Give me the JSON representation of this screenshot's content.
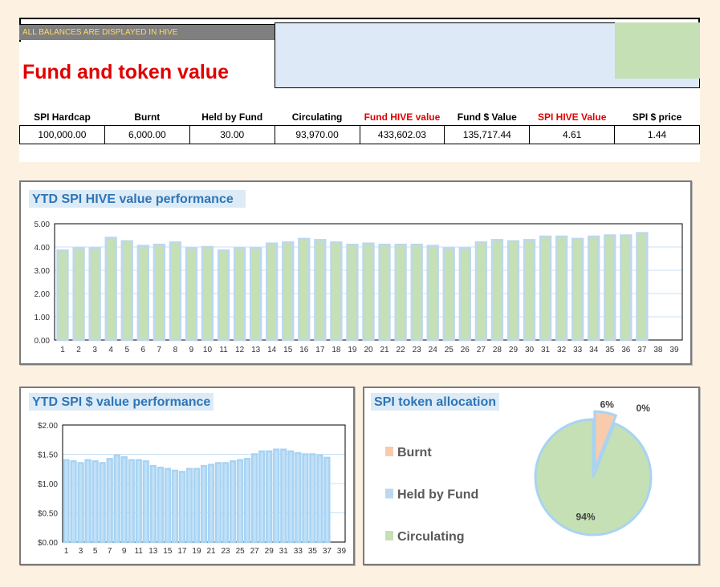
{
  "header": {
    "banner": "ALL BALANCES ARE DISPLAYED IN HIVE",
    "title": "Fund and token value"
  },
  "table": {
    "headers": [
      "SPI Hardcap",
      "Burnt",
      "Held by Fund",
      "Circulating",
      "Fund HIVE value",
      "Fund $ Value",
      "SPI HIVE Value",
      "SPI $ price"
    ],
    "rows": [
      [
        "100,000.00",
        "6,000.00",
        "30.00",
        "93,970.00",
        "433,602.03",
        "135,717.44",
        "4.61",
        "1.44"
      ]
    ]
  },
  "chart_data": [
    {
      "type": "bar",
      "title": "YTD SPI HIVE value performance",
      "categories": [
        "1",
        "2",
        "3",
        "4",
        "5",
        "6",
        "7",
        "8",
        "9",
        "10",
        "11",
        "12",
        "13",
        "14",
        "15",
        "16",
        "17",
        "18",
        "19",
        "20",
        "21",
        "22",
        "23",
        "24",
        "25",
        "26",
        "27",
        "28",
        "29",
        "30",
        "31",
        "32",
        "33",
        "34",
        "35",
        "36",
        "37",
        "38",
        "39"
      ],
      "values": [
        3.85,
        3.95,
        3.95,
        4.4,
        4.25,
        4.05,
        4.1,
        4.2,
        3.95,
        4.0,
        3.85,
        3.95,
        3.95,
        4.15,
        4.2,
        4.35,
        4.3,
        4.2,
        4.1,
        4.15,
        4.1,
        4.1,
        4.1,
        4.05,
        3.95,
        3.95,
        4.2,
        4.3,
        4.25,
        4.3,
        4.45,
        4.45,
        4.35,
        4.45,
        4.5,
        4.5,
        4.6,
        null,
        null
      ],
      "color": "#c5e0b4",
      "edge": "#bdd7ee",
      "ylim": [
        0,
        5
      ],
      "yticks": [
        {
          "value": 0,
          "label": "0.00"
        },
        {
          "value": 1,
          "label": "1.00"
        },
        {
          "value": 2,
          "label": "2.00"
        },
        {
          "value": 3,
          "label": "3.00"
        },
        {
          "value": 4,
          "label": "4.00"
        },
        {
          "value": 5,
          "label": "5.00"
        }
      ],
      "grid": true
    },
    {
      "type": "bar",
      "title": "YTD SPI $ value performance",
      "categories": [
        "1",
        null,
        "3",
        null,
        "5",
        null,
        "7",
        null,
        "9",
        null,
        "11",
        null,
        "13",
        null,
        "15",
        null,
        "17",
        null,
        "19",
        null,
        "21",
        null,
        "23",
        null,
        "25",
        null,
        "27",
        null,
        "29",
        null,
        "31",
        null,
        "33",
        null,
        "35",
        null,
        "37",
        null,
        "39"
      ],
      "values": [
        1.4,
        1.38,
        1.35,
        1.4,
        1.38,
        1.35,
        1.42,
        1.48,
        1.45,
        1.4,
        1.4,
        1.38,
        1.3,
        1.27,
        1.25,
        1.22,
        1.2,
        1.25,
        1.25,
        1.3,
        1.32,
        1.35,
        1.35,
        1.38,
        1.4,
        1.42,
        1.5,
        1.55,
        1.55,
        1.58,
        1.58,
        1.55,
        1.52,
        1.5,
        1.5,
        1.48,
        1.44,
        null,
        null
      ],
      "color": "#bfe1f8",
      "edge": "#a9d3f2",
      "ylim": [
        0,
        2
      ],
      "yticks": [
        {
          "value": 0,
          "label": "$0.00"
        },
        {
          "value": 0.5,
          "label": "$0.50"
        },
        {
          "value": 1,
          "label": "$1.00"
        },
        {
          "value": 1.5,
          "label": "$1.50"
        },
        {
          "value": 2,
          "label": "$2.00"
        }
      ],
      "grid": true
    },
    {
      "type": "pie",
      "title": "SPI token allocation",
      "categories": [
        "Burnt",
        "Held by Fund",
        "Circulating"
      ],
      "values": [
        6,
        0,
        94
      ],
      "value_labels": [
        "6%",
        "0%",
        "94%"
      ],
      "colors": [
        "#f8cbad",
        "#bdd7ee",
        "#c5e0b4"
      ]
    }
  ]
}
